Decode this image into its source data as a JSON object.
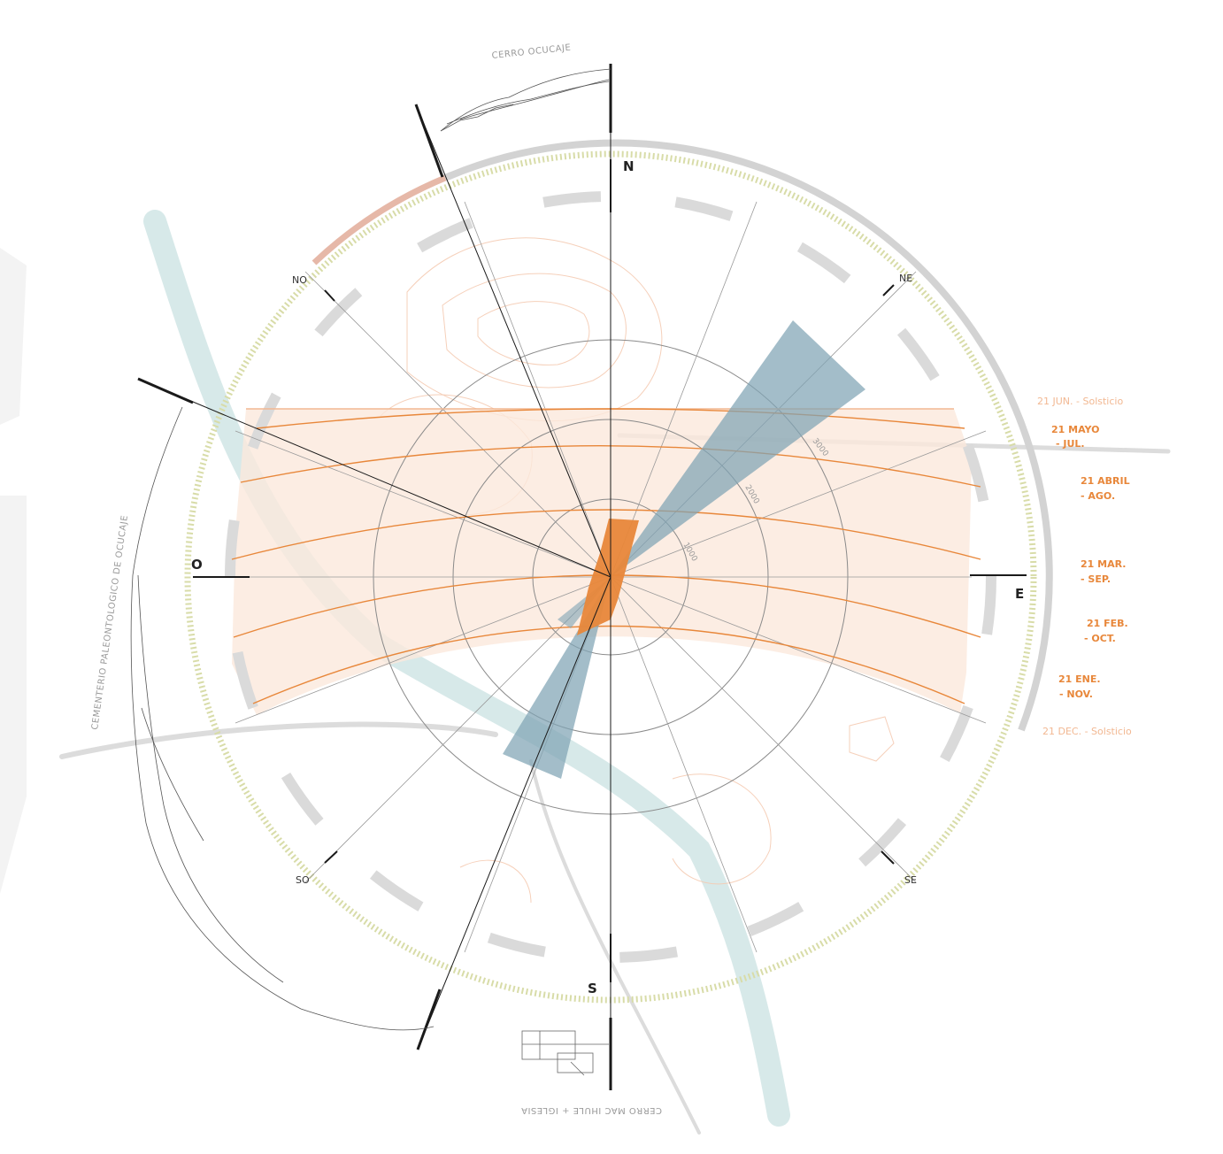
{
  "compass": {
    "north": "N",
    "east": "E",
    "south": "S",
    "west": "O",
    "northeast": "NE",
    "northwest": "NO",
    "southeast": "SE",
    "southwest": "SO"
  },
  "places": {
    "top": "CERRO OCUCAJE",
    "bottom": "CERRO MAC IHULE + IGLESIA",
    "left": "CEMENTERIO PALEONTOLOGICO DE OCUCAJE"
  },
  "sun_paths": {
    "solstice_june": "21 JUN. - Solsticio",
    "may_jul_a": "21 MAYO",
    "may_jul_b": "- JUL.",
    "apr_aug_a": "21 ABRIL",
    "apr_aug_b": "- AGO.",
    "mar_sep_a": "21 MAR.",
    "mar_sep_b": "- SEP.",
    "feb_oct_a": "21 FEB.",
    "feb_oct_b": "- OCT.",
    "jan_nov_a": "21 ENE.",
    "jan_nov_b": "- NOV.",
    "solstice_december": "21 DEC. - Solsticio"
  },
  "distance_labels": {
    "inner": "1000",
    "middle": "2000",
    "outer": "3000"
  },
  "colors": {
    "sun_orange": "#e8873a",
    "sun_band": "#fbe9dc",
    "wind_blue": "#7fa4b4",
    "ring_gray": "#d3d3d3",
    "ring_pink": "#e6b8a8",
    "ring_olive": "#d8dca8",
    "river": "#c9e2e2"
  }
}
